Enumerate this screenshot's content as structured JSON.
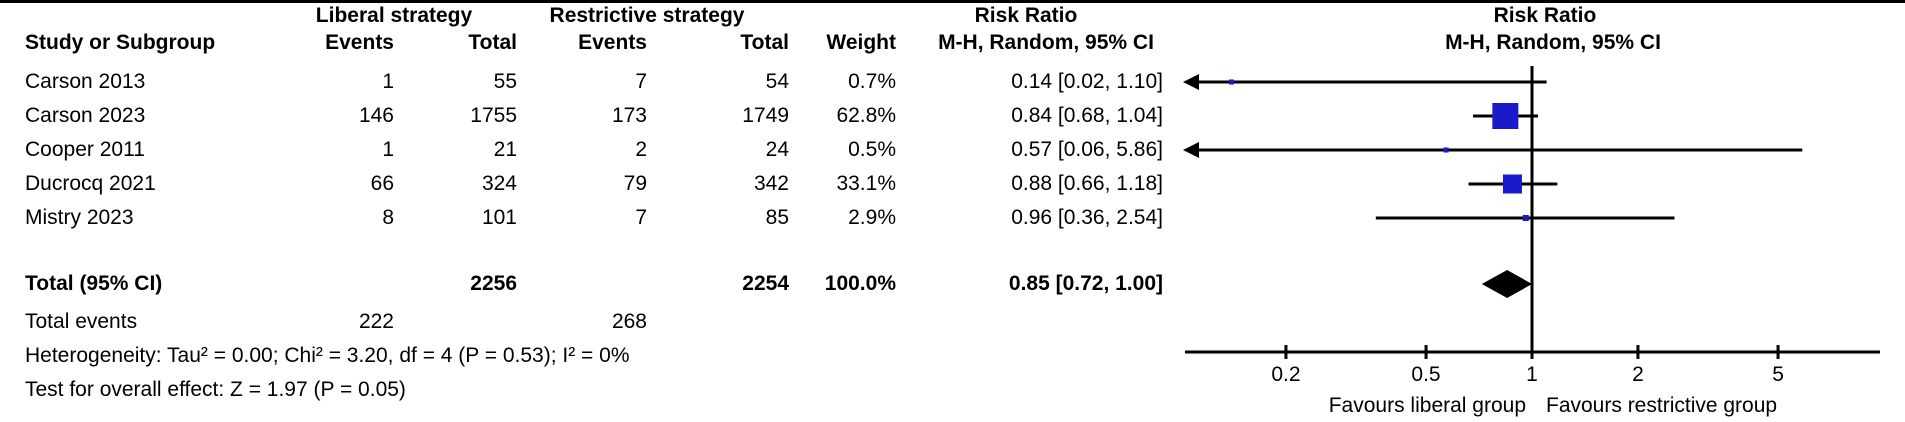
{
  "header": {
    "group1": "Liberal strategy",
    "group2": "Restrictive strategy",
    "col_study": "Study or Subgroup",
    "col_events": "Events",
    "col_total": "Total",
    "col_weight": "Weight",
    "risk_ratio": "Risk Ratio",
    "method": "M-H, Random, 95% CI"
  },
  "chart_data": {
    "type": "forest",
    "title": "Risk Ratio",
    "effect_measure": "M-H, Random, 95% CI",
    "x_scale": "log",
    "x_ticks": [
      0.2,
      0.5,
      1,
      2,
      5
    ],
    "x_range": [
      0.1,
      9.7
    ],
    "null_value": 1,
    "favours_left": "Favours liberal group",
    "favours_right": "Favours restrictive group",
    "marker_color": "#1A1ACB",
    "line_color": "#000000",
    "studies": [
      {
        "label": "Carson 2013",
        "events1": "1",
        "total1": "55",
        "events2": "7",
        "total2": "54",
        "weight": "0.7%",
        "ci_text": "0.14 [0.02, 1.10]",
        "rr": 0.14,
        "ci_low": 0.02,
        "ci_high": 1.1
      },
      {
        "label": "Carson 2023",
        "events1": "146",
        "total1": "1755",
        "events2": "173",
        "total2": "1749",
        "weight": "62.8%",
        "ci_text": "0.84 [0.68, 1.04]",
        "rr": 0.84,
        "ci_low": 0.68,
        "ci_high": 1.04
      },
      {
        "label": "Cooper 2011",
        "events1": "1",
        "total1": "21",
        "events2": "2",
        "total2": "24",
        "weight": "0.5%",
        "ci_text": "0.57 [0.06, 5.86]",
        "rr": 0.57,
        "ci_low": 0.06,
        "ci_high": 5.86
      },
      {
        "label": "Ducrocq 2021",
        "events1": "66",
        "total1": "324",
        "events2": "79",
        "total2": "342",
        "weight": "33.1%",
        "ci_text": "0.88 [0.66, 1.18]",
        "rr": 0.88,
        "ci_low": 0.66,
        "ci_high": 1.18
      },
      {
        "label": "Mistry 2023",
        "events1": "8",
        "total1": "101",
        "events2": "7",
        "total2": "85",
        "weight": "2.9%",
        "ci_text": "0.96 [0.36, 2.54]",
        "rr": 0.96,
        "ci_low": 0.36,
        "ci_high": 2.54
      }
    ],
    "total": {
      "label": "Total (95% CI)",
      "total1": "2256",
      "total2": "2254",
      "weight": "100.0%",
      "ci_text": "0.85 [0.72, 1.00]",
      "rr": 0.85,
      "ci_low": 0.72,
      "ci_high": 1.0
    }
  },
  "footer": {
    "total_events_label": "Total events",
    "total_events1": "222",
    "total_events2": "268",
    "heterogeneity": "Heterogeneity: Tau² = 0.00; Chi² = 3.20, df = 4 (P = 0.53); I² = 0%",
    "overall_effect": "Test for overall effect: Z = 1.97 (P = 0.05)"
  }
}
